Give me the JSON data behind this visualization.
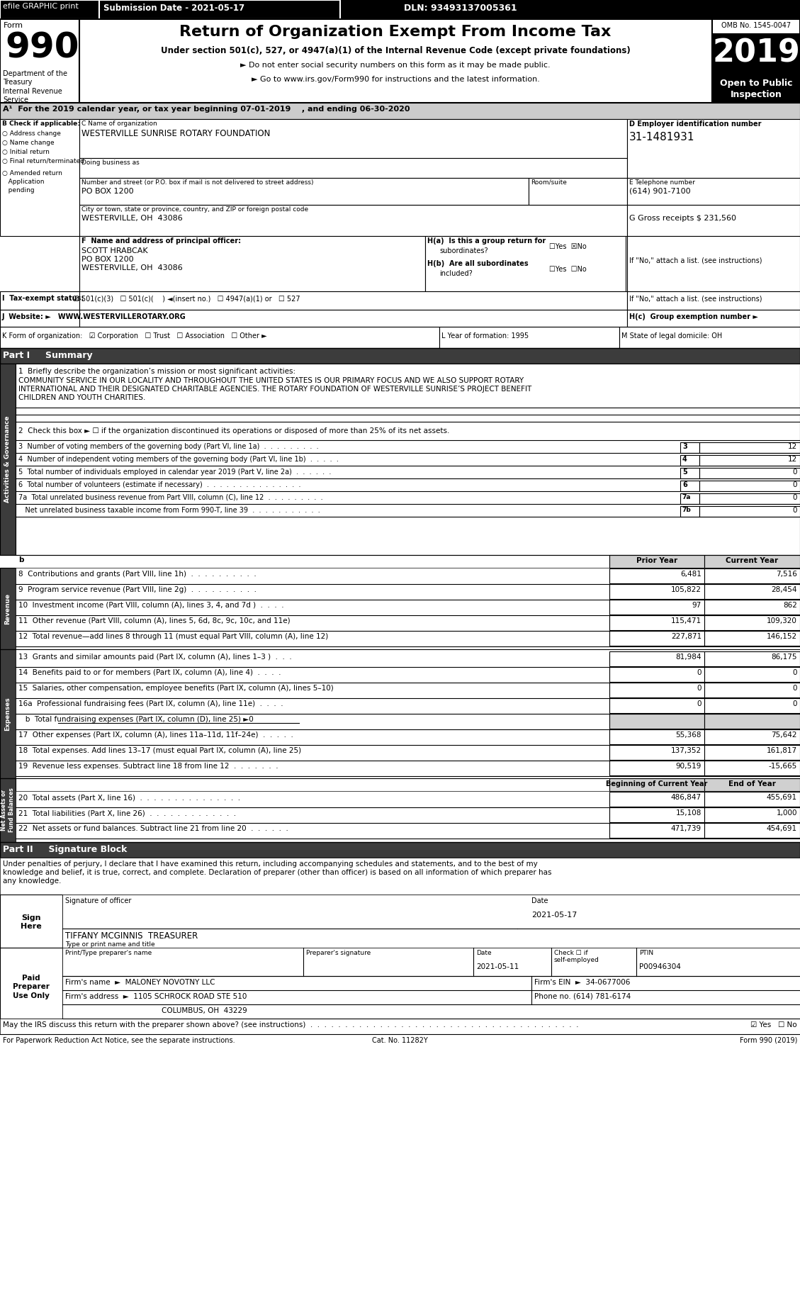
{
  "title_main": "Return of Organization Exempt From Income Tax",
  "year": "2019",
  "omb": "OMB No. 1545-0047",
  "efile_text": "efile GRAPHIC print",
  "submission_date": "Submission Date - 2021-05-17",
  "dln": "DLN: 93493137005361",
  "open_to_public": "Open to Public\nInspection",
  "subtitle1": "Under section 501(c), 527, or 4947(a)(1) of the Internal Revenue Code (except private foundations)",
  "bullet1": "► Do not enter social security numbers on this form as it may be made public.",
  "bullet2": "► Go to www.irs.gov/Form990 for instructions and the latest information.",
  "dept_text": "Department of the\nTreasury\nInternal Revenue\nService",
  "line_A": "A¹  For the 2019 calendar year, or tax year beginning 07-01-2019    , and ending 06-30-2020",
  "org_name": "WESTERVILLE SUNRISE ROTARY FOUNDATION",
  "dba_label": "Doing business as",
  "street_label": "Number and street (or P.O. box if mail is not delivered to street address)",
  "room_label": "Room/suite",
  "street_value": "PO BOX 1200",
  "city_label": "City or town, state or province, country, and ZIP or foreign postal code",
  "city_value": "WESTERVILLE, OH  43086",
  "ein_label": "D Employer identification number",
  "ein": "31-1481931",
  "phone_label": "E Telephone number",
  "phone": "(614) 901-7100",
  "gross_label": "G Gross receipts $ 231,560",
  "officer_label": "F  Name and address of principal officer:",
  "officer_name": "SCOTT HRABCAK",
  "officer_addr1": "PO BOX 1200",
  "officer_addr2": "WESTERVILLE, OH  43086",
  "if_no": "If \"No,\" attach a list. (see instructions)",
  "website": "WWW.WESTERVILLEROTARY.ORG",
  "year_form": "1995",
  "state_dom": "OH",
  "part1_header": "Part I     Summary",
  "line1_label": "1  Briefly describe the organization’s mission or most significant activities:",
  "line1_text_1": "COMMUNITY SERVICE IN OUR LOCALITY AND THROUGHOUT THE UNITED STATES IS OUR PRIMARY FOCUS AND WE ALSO SUPPORT ROTARY",
  "line1_text_2": "INTERNATIONAL AND THEIR DESIGNATED CHARITABLE AGENCIES. THE ROTARY FOUNDATION OF WESTERVILLE SUNRISE’S PROJECT BENEFIT",
  "line1_text_3": "CHILDREN AND YOUTH CHARITIES.",
  "line2_text": "2  Check this box ► ☐ if the organization discontinued its operations or disposed of more than 25% of its net assets.",
  "col_prior": "Prior Year",
  "col_current": "Current Year",
  "col_begin": "Beginning of Current Year",
  "col_end": "End of Year",
  "part2_header": "Part II     Signature Block",
  "sig_text1": "Under penalties of perjury, I declare that I have examined this return, including accompanying schedules and statements, and to the best of my",
  "sig_text2": "knowledge and belief, it is true, correct, and complete. Declaration of preparer (other than officer) is based on all information of which preparer has",
  "sig_text3": "any knowledge.",
  "sig_date": "2021-05-17",
  "sig_name": "TIFFANY MCGINNIS  TREASURER",
  "preparer_ptin": "P00946304",
  "preparer_date": "2021-05-11",
  "firm_name": "MALONEY NOVOTNY LLC",
  "firm_ein": "34-0677006",
  "firm_address": "1105 SCHROCK ROAD STE 510",
  "firm_city": "COLUMBUS, OH  43229",
  "firm_phone": "(614) 781-6174",
  "discuss_dots": "May the IRS discuss this return with the preparer shown above? (see instructions)  .  .  .  .  .  .  .  .  .  .  .  .  .  .  .  .  .  .  .  .  .  .  .  .  .  .  .  .  .  .  .  .  .  .  .  .  .  .  .",
  "for_paperwork": "For Paperwork Reduction Act Notice, see the separate instructions.",
  "cat_no": "Cat. No. 11282Y",
  "form_footer": "Form 990 (2019)"
}
